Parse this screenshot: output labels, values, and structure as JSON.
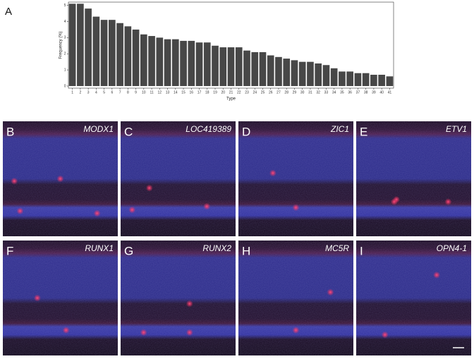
{
  "chart_data": {
    "type": "bar",
    "panel_label": "A",
    "x_label": "Type",
    "y_label": "Frequency (%)",
    "categories": [
      "1",
      "2",
      "3",
      "4",
      "5",
      "6",
      "7",
      "8",
      "9",
      "10",
      "11",
      "12",
      "13",
      "14",
      "15",
      "16",
      "17",
      "18",
      "19",
      "20",
      "21",
      "22",
      "23",
      "24",
      "25",
      "26",
      "27",
      "28",
      "29",
      "30",
      "31",
      "32",
      "33",
      "34",
      "35",
      "36",
      "37",
      "38",
      "39",
      "40",
      "41"
    ],
    "values": [
      5.1,
      5.1,
      4.8,
      4.3,
      4.1,
      4.1,
      3.9,
      3.7,
      3.5,
      3.2,
      3.1,
      3.0,
      2.9,
      2.9,
      2.8,
      2.8,
      2.7,
      2.7,
      2.5,
      2.4,
      2.4,
      2.4,
      2.2,
      2.1,
      2.1,
      1.9,
      1.8,
      1.7,
      1.6,
      1.5,
      1.5,
      1.4,
      1.3,
      1.1,
      0.9,
      0.9,
      0.8,
      0.8,
      0.7,
      0.7,
      0.6
    ],
    "color": "#474747",
    "ylim": [
      0,
      5.2
    ],
    "yticks": [
      0,
      1,
      2,
      3,
      4,
      5
    ],
    "grid": false
  },
  "images": [
    {
      "letter": "B",
      "gene": "MODX1"
    },
    {
      "letter": "C",
      "gene": "LOC419389"
    },
    {
      "letter": "D",
      "gene": "ZIC1"
    },
    {
      "letter": "E",
      "gene": "ETV1"
    },
    {
      "letter": "F",
      "gene": "RUNX1"
    },
    {
      "letter": "G",
      "gene": "RUNX2"
    },
    {
      "letter": "H",
      "gene": "MC5R"
    },
    {
      "letter": "I",
      "gene": "OPN4-1"
    }
  ]
}
